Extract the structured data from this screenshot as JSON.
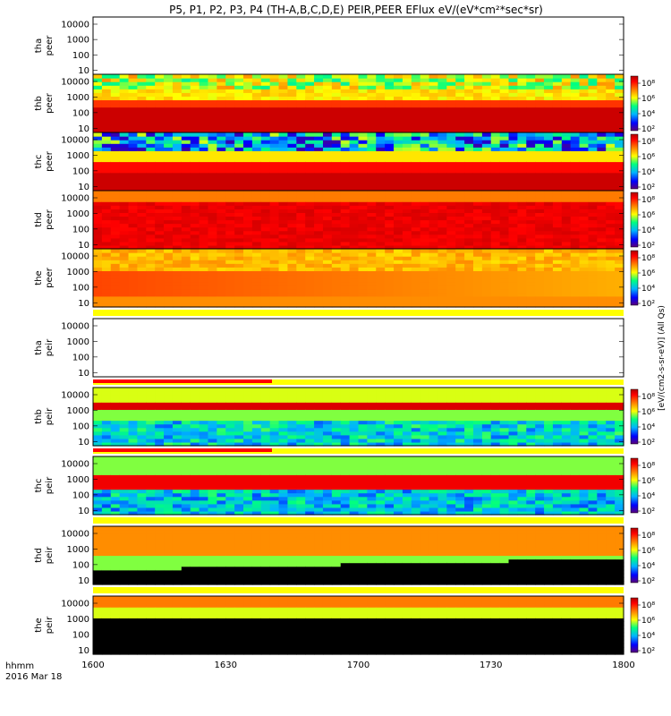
{
  "title": "P5, P1, P2, P3, P4 (TH-A,B,C,D,E) PEIR,PEER EFlux eV/(eV*cm²*sec*sr)",
  "footer": {
    "time_format": "hhmm",
    "date": "2016 Mar 18"
  },
  "colorbar": {
    "tick_labels_full": [
      "10⁸",
      "10⁶",
      "10⁴",
      "10²"
    ],
    "tick_labels_short": [
      "10⁶",
      "10⁴",
      "10²"
    ],
    "unit_label": "[eV/(cm2-s-sr-eV)] (All Qs)",
    "colors": [
      "#5a007a",
      "#0000ff",
      "#00b4ff",
      "#00ff80",
      "#ffff00",
      "#ff8000",
      "#ff0000",
      "#b00000"
    ]
  },
  "chart_data": {
    "type": "heatmap",
    "x_ticks": [
      "1600",
      "1630",
      "1700",
      "1730",
      "1800"
    ],
    "x_range": [
      "16:00",
      "18:00"
    ],
    "y_scale": "log",
    "y_ticks": [
      "10000",
      "1000",
      "100",
      "10"
    ],
    "y_range": [
      5,
      30000
    ],
    "panels": [
      {
        "probe": "tha",
        "species": "peer",
        "empty": true
      },
      {
        "probe": "thb",
        "species": "peer",
        "empty": false
      },
      {
        "probe": "thc",
        "species": "peer",
        "empty": false
      },
      {
        "probe": "thd",
        "species": "peer",
        "empty": false
      },
      {
        "probe": "the",
        "species": "peer",
        "empty": false
      },
      {
        "probe": "tha",
        "species": "peir",
        "empty": true
      },
      {
        "probe": "thb",
        "species": "peir",
        "empty": false
      },
      {
        "probe": "thc",
        "species": "peir",
        "empty": false
      },
      {
        "probe": "thd",
        "species": "peir",
        "empty": false
      },
      {
        "probe": "the",
        "species": "peir",
        "empty": false
      }
    ]
  }
}
